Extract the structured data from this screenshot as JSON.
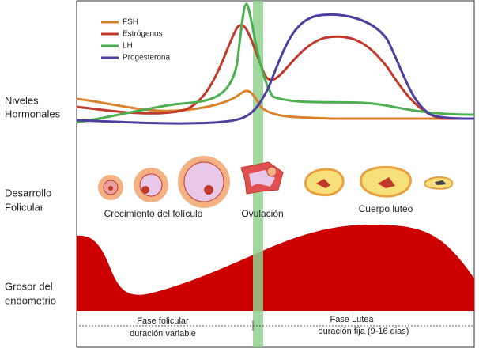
{
  "legend": [
    "FSH",
    "Estrógenos",
    "LH",
    "Progesterona"
  ],
  "row_labels": [
    [
      "Niveles",
      "Hormonales"
    ],
    [
      "Desarrollo",
      "Folicular"
    ],
    [
      "Grosor del",
      "endometrio"
    ]
  ],
  "stage_labels": [
    "Crecimiento del folículo",
    "Ovulación",
    "Cuerpo luteo"
  ],
  "phases": [
    [
      "Fase folicular",
      "duración variable"
    ],
    [
      "Fase Lutea",
      "duración fija (9-16 dias)"
    ]
  ]
}
